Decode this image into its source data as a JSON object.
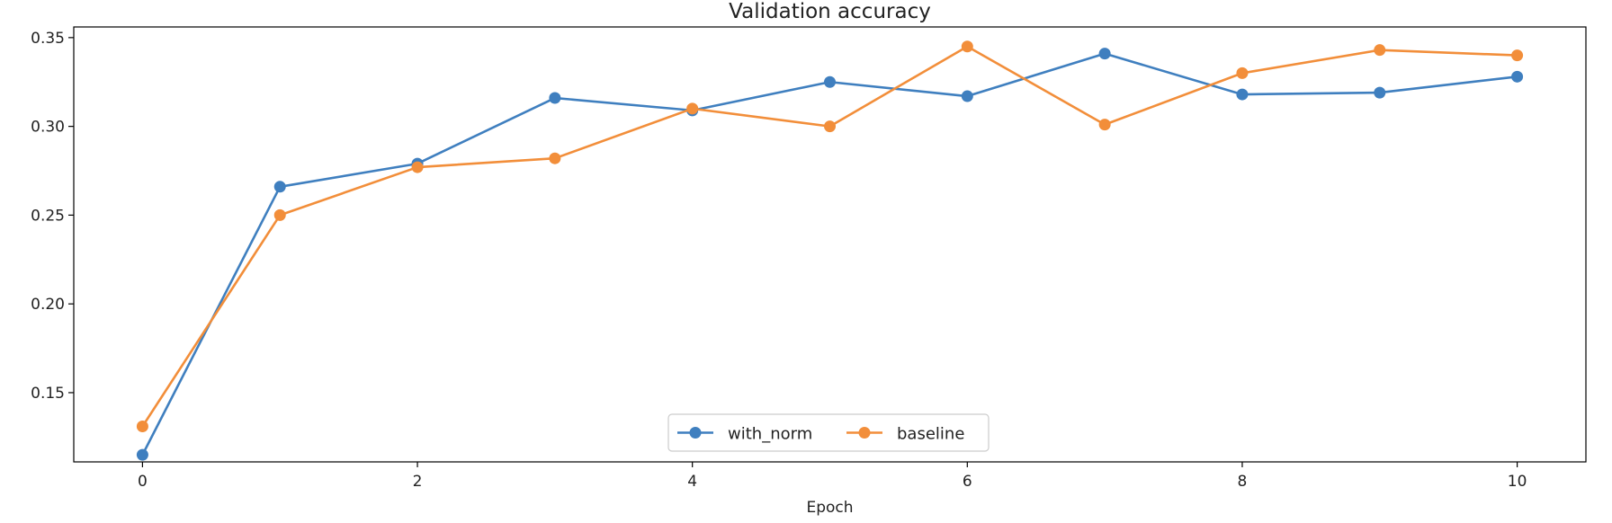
{
  "chart_data": {
    "type": "line",
    "title": "Validation accuracy",
    "xlabel": "Epoch",
    "ylabel": "",
    "x": [
      0,
      1,
      2,
      3,
      4,
      5,
      6,
      7,
      8,
      9,
      10
    ],
    "xlim": [
      -0.5,
      10.5
    ],
    "ylim": [
      0.111,
      0.356
    ],
    "xticks": [
      0,
      2,
      4,
      6,
      8,
      10
    ],
    "xtick_labels": [
      "0",
      "2",
      "4",
      "6",
      "8",
      "10"
    ],
    "yticks": [
      0.15,
      0.2,
      0.25,
      0.3,
      0.35
    ],
    "ytick_labels": [
      "0.15",
      "0.20",
      "0.25",
      "0.30",
      "0.35"
    ],
    "grid": false,
    "legend": {
      "placement": "lower center",
      "columns": 2
    },
    "series": [
      {
        "name": "with_norm",
        "color": "#3f7fbf",
        "marker": "circle",
        "values": [
          0.115,
          0.266,
          0.279,
          0.316,
          0.309,
          0.325,
          0.317,
          0.341,
          0.318,
          0.319,
          0.328
        ]
      },
      {
        "name": "baseline",
        "color": "#f28e3a",
        "marker": "circle",
        "values": [
          0.131,
          0.25,
          0.277,
          0.282,
          0.31,
          0.3,
          0.345,
          0.301,
          0.33,
          0.343,
          0.34
        ]
      }
    ]
  }
}
